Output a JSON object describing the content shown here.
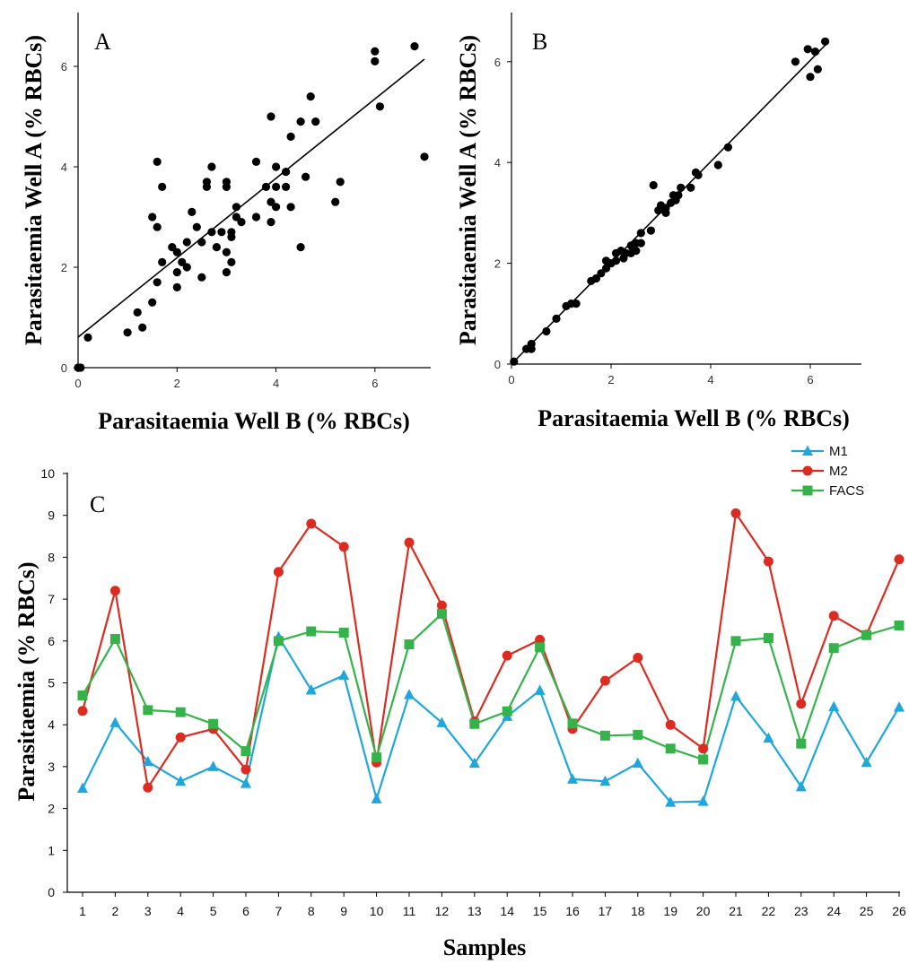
{
  "colors": {
    "m1": "#1fa7dd",
    "m2": "#dc2b20",
    "facs": "#35b34a",
    "axis": "#000000",
    "point": "#000000"
  },
  "chart_data": [
    {
      "type": "scatter",
      "panel_label": "A",
      "xlabel": "Parasitaemia Well B (% RBCs)",
      "ylabel": "Parasitaemia Well A (% RBCs)",
      "xlim": [
        0,
        7
      ],
      "ylim": [
        0,
        7
      ],
      "xticks": [
        "0",
        "2",
        "4",
        "6"
      ],
      "yticks": [
        "0",
        "2",
        "4",
        "6"
      ],
      "grid": false,
      "trendline": {
        "x0": 0,
        "y0": 0.6,
        "x1": 7,
        "y1": 6.15
      },
      "points": [
        [
          0,
          0
        ],
        [
          0.05,
          0
        ],
        [
          0.2,
          0.6
        ],
        [
          1.0,
          0.7
        ],
        [
          1.2,
          1.1
        ],
        [
          1.3,
          0.8
        ],
        [
          1.5,
          1.3
        ],
        [
          1.6,
          1.7
        ],
        [
          1.5,
          3.0
        ],
        [
          1.6,
          2.8
        ],
        [
          1.6,
          4.1
        ],
        [
          1.7,
          3.6
        ],
        [
          1.7,
          2.1
        ],
        [
          1.9,
          2.4
        ],
        [
          2.0,
          2.3
        ],
        [
          2.0,
          1.6
        ],
        [
          2.0,
          1.9
        ],
        [
          2.1,
          2.1
        ],
        [
          2.2,
          2.0
        ],
        [
          2.2,
          2.5
        ],
        [
          2.3,
          3.1
        ],
        [
          2.4,
          2.8
        ],
        [
          2.5,
          2.5
        ],
        [
          2.5,
          1.8
        ],
        [
          2.6,
          3.6
        ],
        [
          2.6,
          3.7
        ],
        [
          2.7,
          4.0
        ],
        [
          2.7,
          2.7
        ],
        [
          2.8,
          2.4
        ],
        [
          2.9,
          2.7
        ],
        [
          3.0,
          2.3
        ],
        [
          3.0,
          1.9
        ],
        [
          3.0,
          3.6
        ],
        [
          3.0,
          3.7
        ],
        [
          3.1,
          2.6
        ],
        [
          3.1,
          2.7
        ],
        [
          3.1,
          2.1
        ],
        [
          3.2,
          3.0
        ],
        [
          3.2,
          3.2
        ],
        [
          3.3,
          2.9
        ],
        [
          3.6,
          3.0
        ],
        [
          3.6,
          4.1
        ],
        [
          3.8,
          3.6
        ],
        [
          3.9,
          2.9
        ],
        [
          3.9,
          3.3
        ],
        [
          3.9,
          5.0
        ],
        [
          4.0,
          3.2
        ],
        [
          4.0,
          3.6
        ],
        [
          4.0,
          4.0
        ],
        [
          4.2,
          3.6
        ],
        [
          4.2,
          3.9
        ],
        [
          4.3,
          3.2
        ],
        [
          4.3,
          4.6
        ],
        [
          4.5,
          4.9
        ],
        [
          4.5,
          2.4
        ],
        [
          4.6,
          3.8
        ],
        [
          4.7,
          5.4
        ],
        [
          4.8,
          4.9
        ],
        [
          5.2,
          3.3
        ],
        [
          5.3,
          3.7
        ],
        [
          6.0,
          6.1
        ],
        [
          6.0,
          6.3
        ],
        [
          6.1,
          5.2
        ],
        [
          6.8,
          6.4
        ],
        [
          7.0,
          4.2
        ]
      ]
    },
    {
      "type": "scatter",
      "panel_label": "B",
      "xlabel": "Parasitaemia Well B (% RBCs)",
      "ylabel": "Parasitaemia Well A (% RBCs)",
      "xlim": [
        0,
        7
      ],
      "ylim": [
        0,
        7
      ],
      "xticks": [
        "0",
        "2",
        "4",
        "6"
      ],
      "yticks": [
        "0",
        "2",
        "4",
        "6"
      ],
      "grid": false,
      "trendline": {
        "x0": 0,
        "y0": 0,
        "x1": 6.3,
        "y1": 6.35
      },
      "points": [
        [
          0.05,
          0.05
        ],
        [
          0.3,
          0.3
        ],
        [
          0.4,
          0.4
        ],
        [
          0.4,
          0.3
        ],
        [
          0.7,
          0.65
        ],
        [
          0.9,
          0.9
        ],
        [
          1.1,
          1.15
        ],
        [
          1.2,
          1.2
        ],
        [
          1.3,
          1.2
        ],
        [
          1.6,
          1.65
        ],
        [
          1.7,
          1.7
        ],
        [
          1.8,
          1.8
        ],
        [
          1.9,
          1.9
        ],
        [
          1.9,
          2.05
        ],
        [
          2.0,
          2.0
        ],
        [
          2.1,
          2.05
        ],
        [
          2.1,
          2.2
        ],
        [
          2.2,
          2.25
        ],
        [
          2.25,
          2.1
        ],
        [
          2.3,
          2.2
        ],
        [
          2.4,
          2.2
        ],
        [
          2.4,
          2.35
        ],
        [
          2.5,
          2.25
        ],
        [
          2.5,
          2.4
        ],
        [
          2.6,
          2.4
        ],
        [
          2.6,
          2.6
        ],
        [
          2.8,
          2.65
        ],
        [
          2.85,
          3.55
        ],
        [
          2.95,
          3.05
        ],
        [
          3.0,
          3.15
        ],
        [
          3.1,
          3.0
        ],
        [
          3.1,
          3.1
        ],
        [
          3.2,
          3.2
        ],
        [
          3.25,
          3.35
        ],
        [
          3.3,
          3.25
        ],
        [
          3.35,
          3.35
        ],
        [
          3.4,
          3.5
        ],
        [
          3.6,
          3.5
        ],
        [
          3.7,
          3.8
        ],
        [
          3.75,
          3.75
        ],
        [
          4.15,
          3.95
        ],
        [
          4.35,
          4.3
        ],
        [
          5.7,
          6.0
        ],
        [
          5.95,
          6.25
        ],
        [
          6.0,
          5.7
        ],
        [
          6.1,
          6.2
        ],
        [
          6.15,
          5.85
        ],
        [
          6.3,
          6.4
        ]
      ]
    },
    {
      "type": "line",
      "panel_label": "C",
      "xlabel": "Samples",
      "ylabel": "Parasitaemia (% RBCs)",
      "ylim": [
        0,
        10
      ],
      "yticks": [
        "0",
        "1",
        "2",
        "3",
        "4",
        "5",
        "6",
        "7",
        "8",
        "9",
        "10"
      ],
      "categories": [
        "1",
        "2",
        "3",
        "4",
        "5",
        "6",
        "7",
        "8",
        "9",
        "10",
        "11",
        "12",
        "13",
        "14",
        "15",
        "16",
        "17",
        "18",
        "19",
        "20",
        "21",
        "22",
        "23",
        "24",
        "25",
        "26"
      ],
      "grid": false,
      "legend_position": "top-right",
      "series": [
        {
          "name": "M1",
          "marker": "triangle",
          "values": [
            2.48,
            4.05,
            3.12,
            2.65,
            3.0,
            2.6,
            6.1,
            4.83,
            5.18,
            2.23,
            4.72,
            4.05,
            3.08,
            4.2,
            4.82,
            2.7,
            2.65,
            3.08,
            2.15,
            2.17,
            4.68,
            3.68,
            2.52,
            4.43,
            3.1,
            4.42
          ]
        },
        {
          "name": "M2",
          "marker": "circle",
          "values": [
            4.33,
            7.2,
            2.5,
            3.7,
            3.9,
            2.93,
            7.65,
            8.8,
            8.25,
            3.1,
            8.35,
            6.85,
            4.08,
            5.65,
            6.03,
            3.9,
            5.05,
            5.6,
            4.0,
            3.43,
            9.05,
            7.9,
            4.5,
            6.6,
            6.15,
            7.95
          ]
        },
        {
          "name": "FACS",
          "marker": "square",
          "values": [
            4.7,
            6.05,
            4.35,
            4.3,
            4.02,
            3.37,
            6.0,
            6.23,
            6.2,
            3.22,
            5.92,
            6.65,
            4.02,
            4.32,
            5.85,
            4.03,
            3.74,
            3.76,
            3.43,
            3.17,
            6.0,
            6.07,
            3.55,
            5.83,
            6.14,
            6.37
          ]
        }
      ]
    }
  ]
}
